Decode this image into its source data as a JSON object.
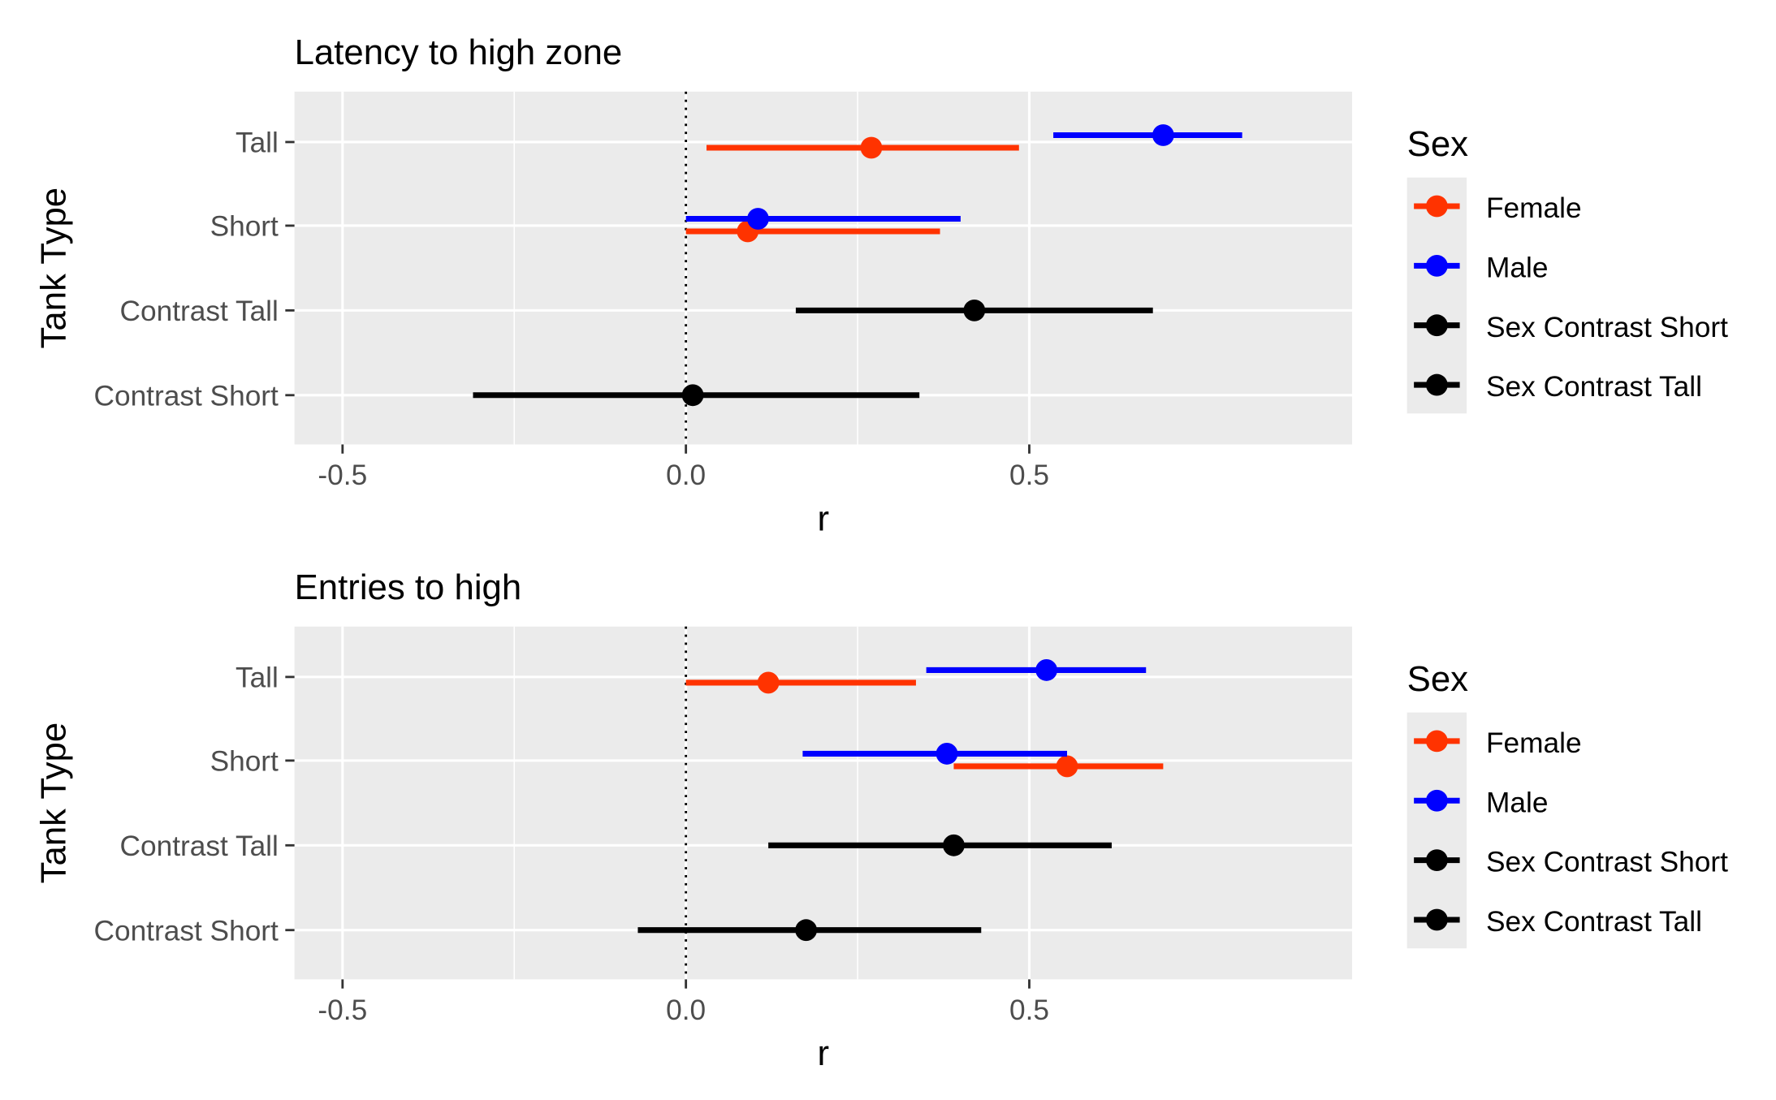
{
  "chart_data": [
    {
      "type": "forest",
      "title": "Latency to high zone",
      "xlabel": "r",
      "ylabel": "Tank Type",
      "xlim": [
        -0.57,
        0.97
      ],
      "xticks": [
        "-0.5",
        "0.0",
        "0.5"
      ],
      "xtick_values": [
        -0.5,
        0,
        0.5
      ],
      "reference_line": 0,
      "grid": true,
      "categories": [
        "Tall",
        "Short",
        "Contrast Tall",
        "Contrast Short"
      ],
      "legend": {
        "title": "Sex",
        "placement": "right",
        "entries": [
          "Female",
          "Male",
          "Sex Contrast Short",
          "Sex Contrast Tall"
        ]
      },
      "series": [
        {
          "name": "Female",
          "color": "#ff3300",
          "points": [
            {
              "category": "Tall",
              "estimate": 0.27,
              "lower": 0.03,
              "upper": 0.485
            },
            {
              "category": "Short",
              "estimate": 0.09,
              "lower": 0.0,
              "upper": 0.37
            }
          ]
        },
        {
          "name": "Male",
          "color": "#0000ff",
          "points": [
            {
              "category": "Tall",
              "estimate": 0.695,
              "lower": 0.535,
              "upper": 0.81
            },
            {
              "category": "Short",
              "estimate": 0.105,
              "lower": 0.0,
              "upper": 0.4
            }
          ]
        },
        {
          "name": "Sex Contrast Short",
          "color": "#000000",
          "points": [
            {
              "category": "Contrast Short",
              "estimate": 0.01,
              "lower": -0.31,
              "upper": 0.34
            }
          ]
        },
        {
          "name": "Sex Contrast Tall",
          "color": "#000000",
          "points": [
            {
              "category": "Contrast Tall",
              "estimate": 0.42,
              "lower": 0.16,
              "upper": 0.68
            }
          ]
        }
      ]
    },
    {
      "type": "forest",
      "title": "Entries to high",
      "xlabel": "r",
      "ylabel": "Tank Type",
      "xlim": [
        -0.57,
        0.97
      ],
      "xticks": [
        "-0.5",
        "0.0",
        "0.5"
      ],
      "xtick_values": [
        -0.5,
        0,
        0.5
      ],
      "reference_line": 0,
      "grid": true,
      "categories": [
        "Tall",
        "Short",
        "Contrast Tall",
        "Contrast Short"
      ],
      "legend": {
        "title": "Sex",
        "placement": "right",
        "entries": [
          "Female",
          "Male",
          "Sex Contrast Short",
          "Sex Contrast Tall"
        ]
      },
      "series": [
        {
          "name": "Female",
          "color": "#ff3300",
          "points": [
            {
              "category": "Tall",
              "estimate": 0.12,
              "lower": 0.0,
              "upper": 0.335
            },
            {
              "category": "Short",
              "estimate": 0.555,
              "lower": 0.39,
              "upper": 0.695
            }
          ]
        },
        {
          "name": "Male",
          "color": "#0000ff",
          "points": [
            {
              "category": "Tall",
              "estimate": 0.525,
              "lower": 0.35,
              "upper": 0.67
            },
            {
              "category": "Short",
              "estimate": 0.38,
              "lower": 0.17,
              "upper": 0.555
            }
          ]
        },
        {
          "name": "Sex Contrast Short",
          "color": "#000000",
          "points": [
            {
              "category": "Contrast Short",
              "estimate": 0.175,
              "lower": -0.07,
              "upper": 0.43
            }
          ]
        },
        {
          "name": "Sex Contrast Tall",
          "color": "#000000",
          "points": [
            {
              "category": "Contrast Tall",
              "estimate": 0.39,
              "lower": 0.12,
              "upper": 0.62
            }
          ]
        }
      ]
    }
  ]
}
